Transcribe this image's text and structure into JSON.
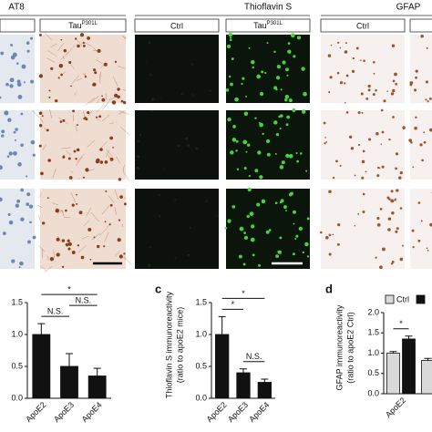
{
  "figure": {
    "groups": [
      {
        "title": "AT8",
        "columns": [
          {
            "base": "Tau",
            "sup": "P301L"
          }
        ]
      },
      {
        "title": "Thioflavin S",
        "columns": [
          {
            "base": "Ctrl"
          },
          {
            "base": "Tau",
            "sup": "P301L"
          }
        ]
      },
      {
        "title": "GFAP",
        "columns": [
          {
            "base": "Ctrl"
          }
        ]
      }
    ]
  },
  "chart_data": [
    {
      "type": "bar",
      "categories": [
        "ApoE2",
        "ApoE3",
        "ApoE4"
      ],
      "series": [
        {
          "color": "#111111",
          "values": [
            1.0,
            0.5,
            0.35
          ],
          "errors": [
            0.17,
            0.2,
            0.12
          ]
        }
      ],
      "ylim": [
        0,
        1.5
      ],
      "yticks": [
        {
          "value": 0,
          "label": "0.0"
        },
        {
          "value": 0.5,
          "label": "0.5"
        },
        {
          "value": 1,
          "label": "1.0"
        },
        {
          "value": 1.5,
          "label": "1.5"
        }
      ],
      "annotations": [
        {
          "label": "*",
          "from": "ApoE2",
          "to": "ApoE4"
        },
        {
          "label": "N.S.",
          "from": "ApoE2",
          "to": "ApoE3"
        },
        {
          "label": "N.S.",
          "from": "ApoE3",
          "to": "ApoE4"
        }
      ]
    },
    {
      "type": "bar",
      "panel": "c",
      "y_label": [
        "Thioflavin S immunoreactivity",
        "(ratio to apoE2 mice)"
      ],
      "categories": [
        "ApoE2",
        "ApoE3",
        "ApoE4"
      ],
      "series": [
        {
          "color": "#111111",
          "values": [
            1.0,
            0.4,
            0.25
          ],
          "errors": [
            0.28,
            0.06,
            0.05
          ]
        }
      ],
      "ylim": [
        0,
        1.5
      ],
      "yticks": [
        {
          "value": 0,
          "label": "0.0"
        },
        {
          "value": 0.5,
          "label": "0.5"
        },
        {
          "value": 1,
          "label": "1.0"
        },
        {
          "value": 1.5,
          "label": "1.5"
        }
      ],
      "annotations": [
        {
          "label": "*",
          "from": "ApoE2",
          "to": "ApoE4"
        },
        {
          "label": "*",
          "from": "ApoE2",
          "to": "ApoE3"
        },
        {
          "label": "N.S.",
          "from": "ApoE3",
          "to": "ApoE4"
        }
      ]
    },
    {
      "type": "bar",
      "panel": "d",
      "y_label": [
        "GFAP immunoreactivity",
        "(ratio to apoE2 Ctrl)"
      ],
      "categories": [
        "ApoE2",
        null
      ],
      "series": [
        {
          "name": "Ctrl",
          "color": "#d9d9d9",
          "values": [
            1.0,
            0.82
          ],
          "errors": [
            0.04,
            0.05
          ]
        },
        {
          "color": "#111111",
          "values": [
            1.35,
            null
          ],
          "errors": [
            0.07,
            null
          ]
        }
      ],
      "ylim": [
        0,
        2
      ],
      "yticks": [
        {
          "value": 0,
          "label": "0.0"
        },
        {
          "value": 0.5,
          "label": "0.5"
        },
        {
          "value": 1,
          "label": "1.0"
        },
        {
          "value": 1.5,
          "label": "1.5"
        },
        {
          "value": 2,
          "label": "2.0"
        }
      ],
      "legend": true,
      "annotations": [
        {
          "label": "*",
          "category": "ApoE2"
        }
      ]
    }
  ]
}
